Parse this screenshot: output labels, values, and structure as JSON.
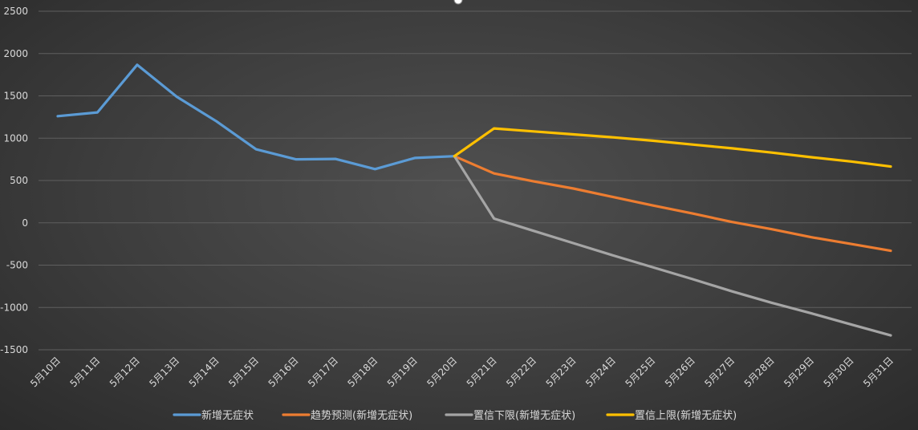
{
  "chart_data": {
    "type": "line",
    "categories": [
      "5月10日",
      "5月11日",
      "5月12日",
      "5月13日",
      "5月14日",
      "5月15日",
      "5月16日",
      "5月17日",
      "5月18日",
      "5月19日",
      "5月20日",
      "5月21日",
      "5月22日",
      "5月23日",
      "5月24日",
      "5月25日",
      "5月26日",
      "5月27日",
      "5月28日",
      "5月29日",
      "5月30日",
      "5月31日"
    ],
    "ylim": [
      -1500,
      2500
    ],
    "yticks": [
      2500,
      2000,
      1500,
      1000,
      500,
      0,
      -500,
      -1000,
      -1500
    ],
    "grid": true,
    "legend_position": "bottom",
    "series": [
      {
        "name": "新增无症状",
        "color": "#5b9bd5",
        "values": [
          1260,
          1305,
          1867,
          1490,
          1200,
          869,
          750,
          755,
          635,
          766,
          787,
          null,
          null,
          null,
          null,
          null,
          null,
          null,
          null,
          null,
          null,
          null
        ]
      },
      {
        "name": "趋势预测(新增无症状)",
        "color": "#ed7d31",
        "values": [
          null,
          null,
          null,
          null,
          null,
          null,
          null,
          null,
          null,
          null,
          787,
          583,
          490,
          405,
          305,
          205,
          110,
          10,
          -75,
          -170,
          -250,
          -330
        ]
      },
      {
        "name": "置信下限(新增无症状)",
        "color": "#a5a5a5",
        "values": [
          null,
          null,
          null,
          null,
          null,
          null,
          null,
          null,
          null,
          null,
          787,
          50,
          -95,
          -240,
          -385,
          -525,
          -665,
          -810,
          -945,
          -1070,
          -1200,
          -1330
        ]
      },
      {
        "name": "置信上限(新增无症状)",
        "color": "#ffc000",
        "values": [
          null,
          null,
          null,
          null,
          null,
          null,
          null,
          null,
          null,
          null,
          787,
          1115,
          1080,
          1045,
          1010,
          970,
          925,
          880,
          830,
          775,
          725,
          665
        ]
      }
    ]
  }
}
